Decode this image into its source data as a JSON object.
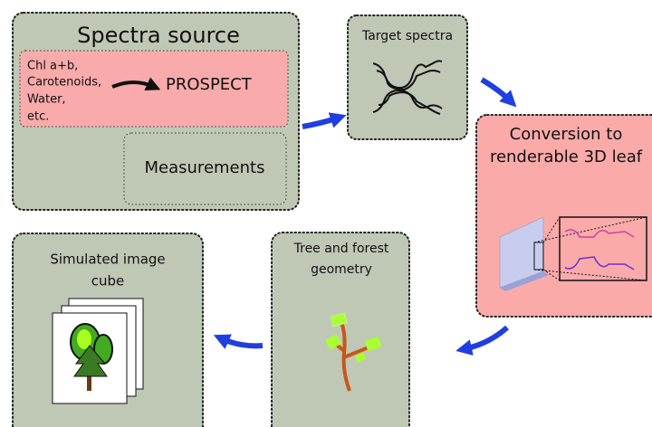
{
  "spectra_source": {
    "title": "Spectra source",
    "inputs": [
      "Chl a+b,",
      "Carotenoids,",
      "Water,",
      "etc."
    ],
    "model": "PROSPECT",
    "measurements": "Measurements"
  },
  "target_spectra": {
    "title": "Target spectra"
  },
  "conversion": {
    "lines": [
      "Conversion to",
      "renderable 3D leaf"
    ]
  },
  "tree_geometry": {
    "lines": [
      "Tree and forest",
      "geometry"
    ]
  },
  "image_cube": {
    "lines": [
      "Simulated image",
      "cube"
    ]
  }
}
